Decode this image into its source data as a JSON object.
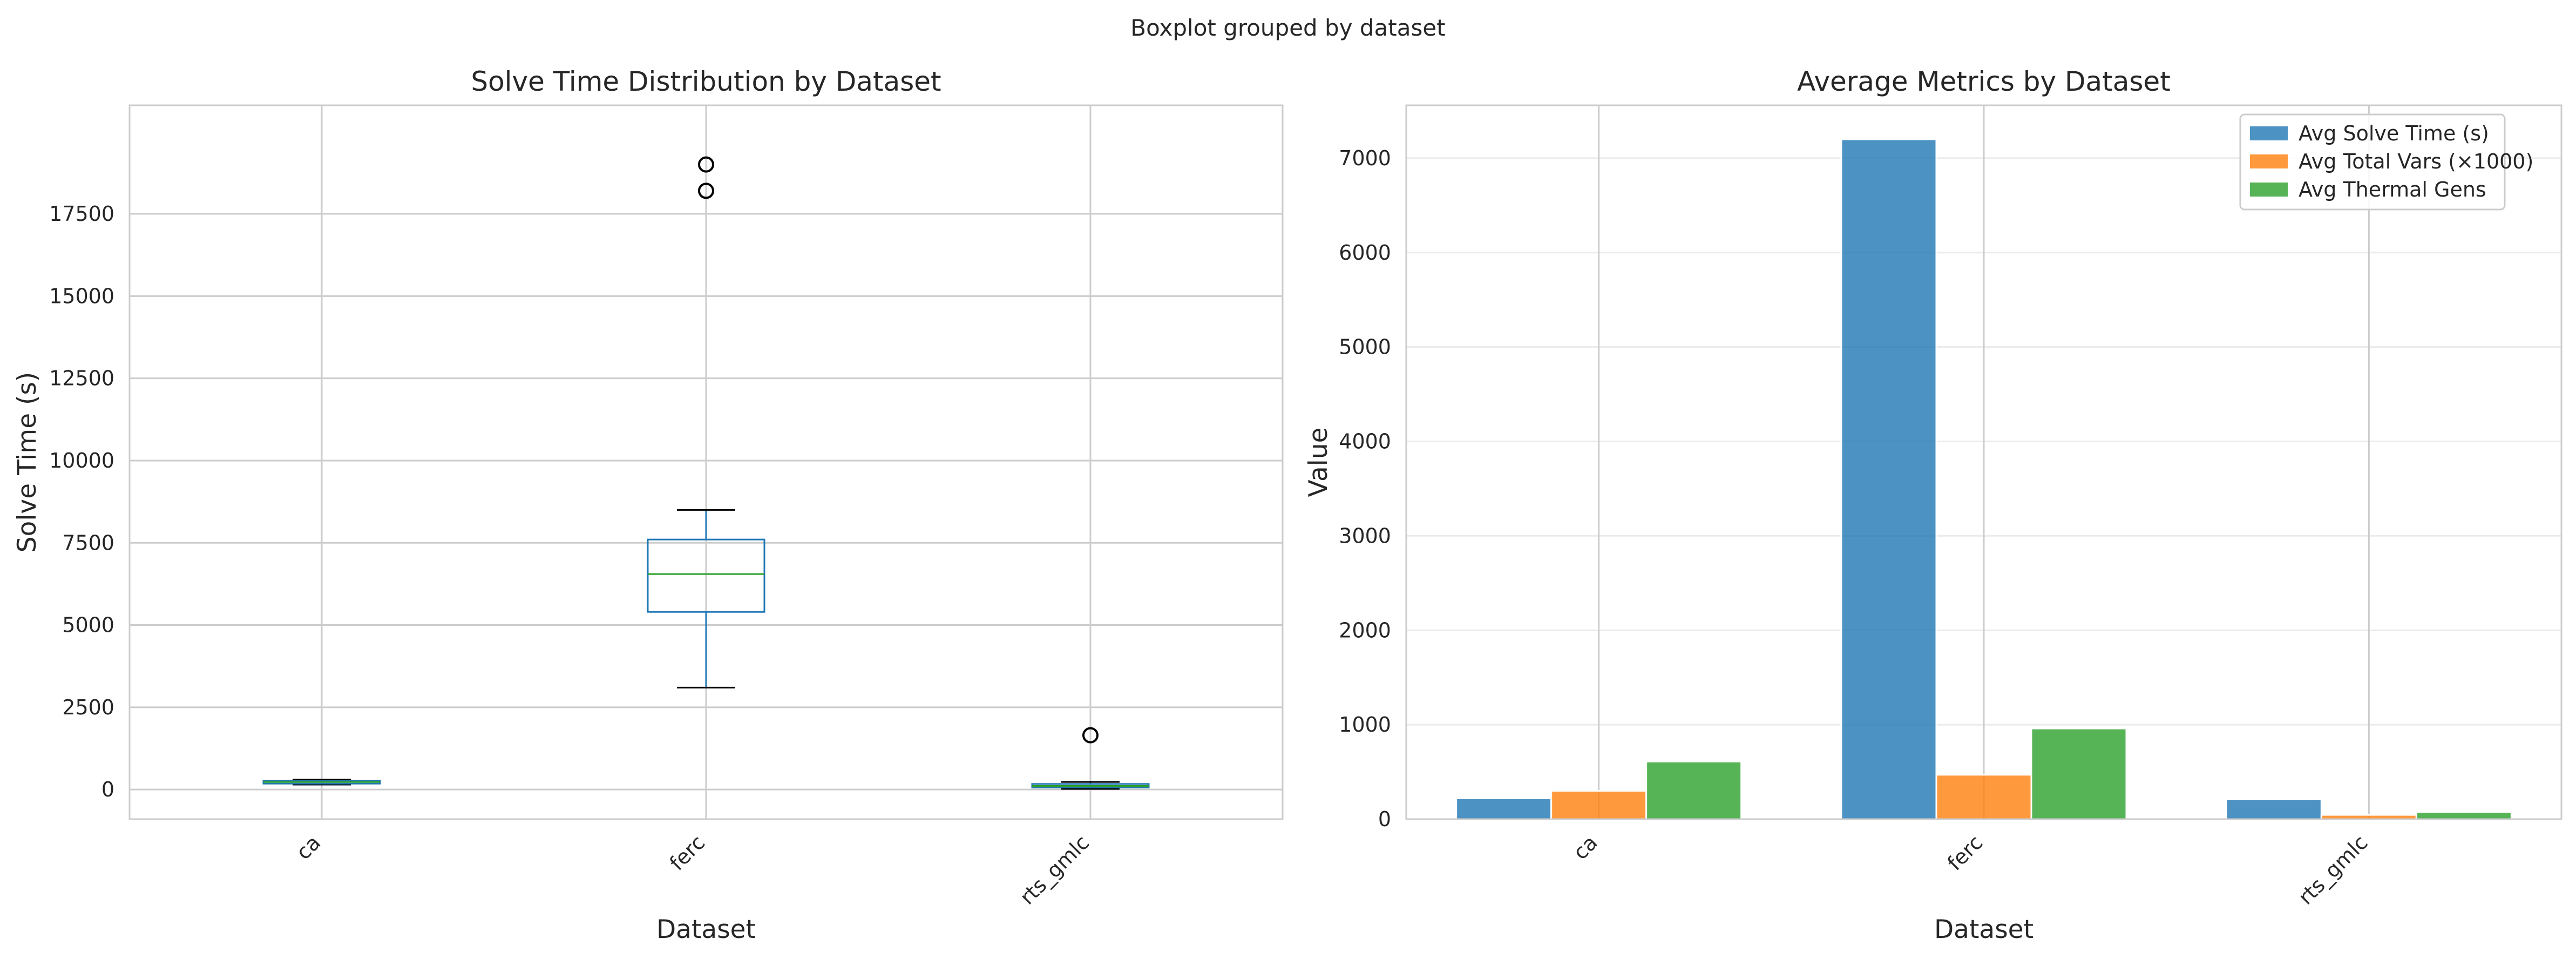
{
  "figure": {
    "suptitle": "Boxplot grouped by dataset"
  },
  "chart_data": [
    {
      "type": "box",
      "title": "Solve Time Distribution by Dataset",
      "xlabel": "Dataset",
      "ylabel": "Solve Time (s)",
      "ylim": [
        -900,
        20800
      ],
      "yticks": [
        0,
        2500,
        5000,
        7500,
        10000,
        12500,
        15000,
        17500
      ],
      "ytick_labels": [
        "0",
        "2500",
        "5000",
        "7500",
        "10000",
        "12500",
        "15000",
        "17500"
      ],
      "categories": [
        "ca",
        "ferc",
        "rts_gmlc"
      ],
      "grid": true,
      "boxes": [
        {
          "name": "ca",
          "whisker_low": 150,
          "q1": 180,
          "median": 230,
          "q3": 270,
          "whisker_high": 300,
          "outliers": []
        },
        {
          "name": "ferc",
          "whisker_low": 3100,
          "q1": 5400,
          "median": 6550,
          "q3": 7600,
          "whisker_high": 8500,
          "outliers": [
            18200,
            19000
          ]
        },
        {
          "name": "rts_gmlc",
          "whisker_low": 20,
          "q1": 60,
          "median": 110,
          "q3": 170,
          "whisker_high": 230,
          "outliers": [
            1650
          ]
        }
      ],
      "colors": {
        "box": "#1f77b4",
        "median": "#2ca02c",
        "whisker_cap": "#000000",
        "outlier": "#000000"
      }
    },
    {
      "type": "bar",
      "title": "Average Metrics by Dataset",
      "xlabel": "Dataset",
      "ylabel": "Value",
      "ylim": [
        0,
        7560
      ],
      "yticks": [
        0,
        1000,
        2000,
        3000,
        4000,
        5000,
        6000,
        7000
      ],
      "ytick_labels": [
        "0",
        "1000",
        "2000",
        "3000",
        "4000",
        "5000",
        "6000",
        "7000"
      ],
      "categories": [
        "ca",
        "ferc",
        "rts_gmlc"
      ],
      "grid": true,
      "legend_position": "top-right",
      "series": [
        {
          "name": "Avg Solve Time (s)",
          "color": "#1f77b4",
          "values": [
            220,
            7200,
            210
          ]
        },
        {
          "name": "Avg Total Vars (×1000)",
          "color": "#ff7f0e",
          "values": [
            300,
            470,
            45
          ]
        },
        {
          "name": "Avg Thermal Gens",
          "color": "#2ca02c",
          "values": [
            610,
            960,
            75
          ]
        }
      ]
    }
  ]
}
